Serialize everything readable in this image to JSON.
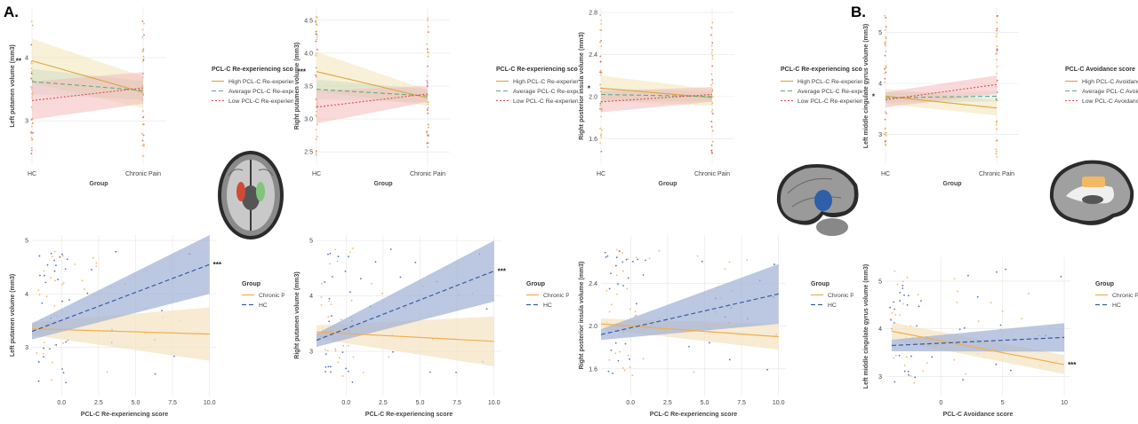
{
  "panel_labels": {
    "a": "A.",
    "b": "B."
  },
  "colors": {
    "high": "#e0a33a",
    "average": "#5bab8a",
    "low": "#d94d4d",
    "chronic": "#f0ad4e",
    "hc": "#3a5ca8",
    "grid": "#e6e6e6",
    "axis_text": "#444444",
    "band_high": "#f3e6b8",
    "band_low": "#f4b9b9",
    "band_chronic": "#f5e3c2",
    "band_hc": "#9fb0d4"
  },
  "chart_data": [
    {
      "type": "line",
      "xlabel": "Group",
      "ylabel": "Left putamen volume (mm3)",
      "x_categories": [
        "HC",
        "Chronic Pain"
      ],
      "yticks": [
        "3",
        "4"
      ],
      "ylim": [
        2.3,
        4.8
      ],
      "legend_title": "PCL-C Re-experiencing score",
      "series": [
        {
          "name": "High PCL-C Re-experiencing score",
          "values": [
            3.95,
            3.45
          ],
          "band": [
            0.35,
            0.25
          ]
        },
        {
          "name": "Average PCL-C Re-experiencing score",
          "values": [
            3.62,
            3.48
          ],
          "band": [
            0.2,
            0.15
          ]
        },
        {
          "name": "Low PCL-C Re-experiencing score",
          "values": [
            3.32,
            3.52
          ],
          "band": [
            0.3,
            0.25
          ]
        }
      ],
      "significance": "**"
    },
    {
      "type": "line",
      "xlabel": "Group",
      "ylabel": "Right putamen volume (mm3)",
      "x_categories": [
        "HC",
        "Chronic Pain"
      ],
      "yticks": [
        "2.5",
        "3.0",
        "3.5",
        "4.0",
        "4.5"
      ],
      "ylim": [
        2.3,
        4.7
      ],
      "legend_title": "PCL-C Re-experiencing score",
      "series": [
        {
          "name": "High PCL-C Re-experiencing score",
          "values": [
            3.72,
            3.32
          ],
          "band": [
            0.3,
            0.12
          ]
        },
        {
          "name": "Average PCL-C Re-experiencing score",
          "values": [
            3.45,
            3.35
          ],
          "band": [
            0.15,
            0.1
          ]
        },
        {
          "name": "Low PCL-C Re-experiencing score",
          "values": [
            3.18,
            3.38
          ],
          "band": [
            0.25,
            0.12
          ]
        }
      ],
      "significance": "***"
    },
    {
      "type": "line",
      "xlabel": "Group",
      "ylabel": "Right posterior insula volume (mm3)",
      "x_categories": [
        "HC",
        "Chronic Pain"
      ],
      "yticks": [
        "1.6",
        "2.0",
        "2.4",
        "2.8"
      ],
      "ylim": [
        1.35,
        2.85
      ],
      "legend_title": "PCL-C Re-experiencing score",
      "series": [
        {
          "name": "High PCL-C Re-experiencing score",
          "values": [
            2.08,
            1.99
          ],
          "band": [
            0.12,
            0.08
          ]
        },
        {
          "name": "Average PCL-C Re-experiencing score",
          "values": [
            2.02,
            2.0
          ],
          "band": [
            0.06,
            0.05
          ]
        },
        {
          "name": "Low PCL-C Re-experiencing score",
          "values": [
            1.95,
            2.02
          ],
          "band": [
            0.1,
            0.07
          ]
        }
      ],
      "significance": "*"
    },
    {
      "type": "line",
      "xlabel": "Group",
      "ylabel": "Left middle cingulate gyrus volume (mm3)",
      "x_categories": [
        "HC",
        "Chronic Pain"
      ],
      "yticks": [
        "3",
        "4",
        "5"
      ],
      "ylim": [
        2.4,
        5.5
      ],
      "legend_title": "PCL-C Avoidance score",
      "series": [
        {
          "name": "High PCL-C Avoidance score",
          "values": [
            3.75,
            3.52
          ],
          "band": [
            0.15,
            0.15
          ]
        },
        {
          "name": "Average PCL-C Avoidance score",
          "values": [
            3.72,
            3.75
          ],
          "band": [
            0.1,
            0.1
          ]
        },
        {
          "name": "Low PCL-C Avoidance score",
          "values": [
            3.68,
            3.98
          ],
          "band": [
            0.15,
            0.18
          ]
        }
      ],
      "significance": "*"
    },
    {
      "type": "scatter",
      "xlabel": "PCL-C Re-experiencing score",
      "ylabel": "Left putamen volume (mm3)",
      "xticks": [
        "0.0",
        "2.5",
        "5.0",
        "7.5",
        "10.0"
      ],
      "xlim": [
        -2,
        10.5
      ],
      "yticks": [
        "3",
        "4",
        "5"
      ],
      "ylim": [
        2.1,
        5.1
      ],
      "legend_title": "Group",
      "series": [
        {
          "name": "Chronic Pain",
          "fit": [
            [
              -2,
              3.35
            ],
            [
              10,
              3.25
            ]
          ],
          "band": [
            0.12,
            0.5
          ]
        },
        {
          "name": "HC",
          "fit": [
            [
              -2,
              3.3
            ],
            [
              10,
              4.55
            ]
          ],
          "band": [
            0.15,
            0.55
          ]
        }
      ],
      "significance": "***"
    },
    {
      "type": "scatter",
      "xlabel": "PCL-C Re-experiencing score",
      "ylabel": "Right putamen volume (mm3)",
      "xticks": [
        "0.0",
        "2.5",
        "5.0",
        "7.5",
        "10.0"
      ],
      "xlim": [
        -2,
        10.5
      ],
      "yticks": [
        "3",
        "4",
        "5"
      ],
      "ylim": [
        2.2,
        5.1
      ],
      "legend_title": "Group",
      "series": [
        {
          "name": "Chronic Pain",
          "fit": [
            [
              -2,
              3.35
            ],
            [
              10,
              3.18
            ]
          ],
          "band": [
            0.12,
            0.45
          ]
        },
        {
          "name": "HC",
          "fit": [
            [
              -2,
              3.2
            ],
            [
              10,
              4.45
            ]
          ],
          "band": [
            0.12,
            0.55
          ]
        }
      ],
      "significance": "***"
    },
    {
      "type": "scatter",
      "xlabel": "PCL-C Re-experiencing score",
      "ylabel": "Right posterior insula volume (mm3)",
      "xticks": [
        "0.0",
        "2.5",
        "5.0",
        "7.5",
        "10.0"
      ],
      "xlim": [
        -2,
        10.5
      ],
      "yticks": [
        "1.6",
        "2.0",
        "2.4"
      ],
      "ylim": [
        1.35,
        2.85
      ],
      "legend_title": "Group",
      "series": [
        {
          "name": "Chronic Pain",
          "fit": [
            [
              -2,
              2.02
            ],
            [
              10,
              1.9
            ]
          ],
          "band": [
            0.05,
            0.12
          ]
        },
        {
          "name": "HC",
          "fit": [
            [
              -2,
              1.92
            ],
            [
              10,
              2.3
            ]
          ],
          "band": [
            0.05,
            0.28
          ]
        }
      ]
    },
    {
      "type": "scatter",
      "xlabel": "PCL-C Avoidance score",
      "ylabel": "Left middle cingulate gyrus volume (mm3)",
      "xticks": [
        "0",
        "5",
        "10"
      ],
      "xlim": [
        -4.5,
        10.5
      ],
      "yticks": [
        "3",
        "4",
        "5"
      ],
      "ylim": [
        2.6,
        5.5
      ],
      "legend_title": "Group",
      "series": [
        {
          "name": "Chronic Pain",
          "fit": [
            [
              -4,
              3.95
            ],
            [
              10,
              3.25
            ]
          ],
          "band": [
            0.18,
            0.2
          ]
        },
        {
          "name": "HC",
          "fit": [
            [
              -4,
              3.65
            ],
            [
              10,
              3.82
            ]
          ],
          "band": [
            0.12,
            0.3
          ]
        }
      ],
      "significance": "***"
    }
  ]
}
